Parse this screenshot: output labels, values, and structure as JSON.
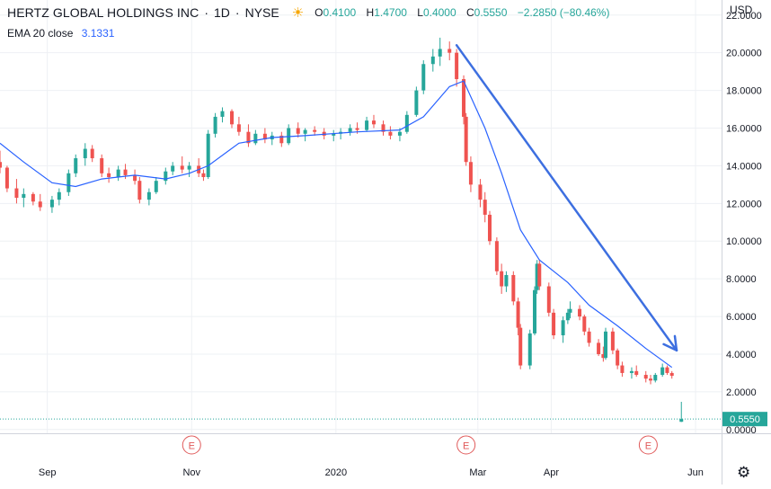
{
  "header": {
    "symbol": "HERTZ GLOBAL HOLDINGS INC",
    "interval": "1D",
    "exchange": "NYSE",
    "ohlc": {
      "o_label": "O",
      "o": "0.4100",
      "h_label": "H",
      "h": "1.4700",
      "l_label": "L",
      "l": "0.4000",
      "c_label": "C",
      "c": "0.5550",
      "change": "−2.2850 (−80.46%)"
    },
    "indicator": {
      "label": "EMA 20 close",
      "value": "3.1331"
    },
    "currency": "USD"
  },
  "colors": {
    "up": "#26a69a",
    "down": "#ef5350",
    "ema": "#2962ff",
    "arrow": "#3d6fe0",
    "grid": "#eef0f4",
    "last": "#26a69a",
    "earnings": "#e05a5a"
  },
  "icons": {
    "sun": "sun-icon",
    "gear": "gear-icon"
  },
  "chart_data": {
    "type": "candlestick",
    "title": "HERTZ GLOBAL HOLDINGS INC · 1D · NYSE",
    "ylabel": "USD",
    "ylim": [
      -0.2,
      22.8
    ],
    "y_ticks": [
      "22.0000",
      "20.0000",
      "18.0000",
      "16.0000",
      "14.0000",
      "12.0000",
      "10.0000",
      "8.0000",
      "6.0000",
      "4.0000",
      "2.0000",
      "0.0000"
    ],
    "x_ticks": [
      {
        "date": "2019-09-01",
        "label": "Sep"
      },
      {
        "date": "2019-11-01",
        "label": "Nov"
      },
      {
        "date": "2020-01-01",
        "label": "2020"
      },
      {
        "date": "2020-03-01",
        "label": "Mar"
      },
      {
        "date": "2020-04-01",
        "label": "Apr"
      },
      {
        "date": "2020-06-01",
        "label": "Jun"
      }
    ],
    "x_range": [
      "2019-08-12",
      "2020-06-12"
    ],
    "earnings_markers": [
      {
        "date": "2019-11-01",
        "label": "E"
      },
      {
        "date": "2020-02-25",
        "label": "E"
      },
      {
        "date": "2020-05-12",
        "label": "E"
      }
    ],
    "last_price": {
      "value": 0.555,
      "label": "0.5550"
    },
    "candles": [
      [
        "2019-08-12",
        14.2,
        14.8,
        13.6,
        13.9
      ],
      [
        "2019-08-15",
        13.9,
        14.0,
        12.6,
        12.8
      ],
      [
        "2019-08-19",
        12.8,
        13.3,
        12.0,
        12.3
      ],
      [
        "2019-08-22",
        12.3,
        12.8,
        11.8,
        12.5
      ],
      [
        "2019-08-26",
        12.5,
        12.6,
        11.9,
        12.1
      ],
      [
        "2019-08-29",
        12.1,
        12.5,
        11.6,
        11.8
      ],
      [
        "2019-09-03",
        11.8,
        12.4,
        11.5,
        12.2
      ],
      [
        "2019-09-06",
        12.2,
        12.8,
        11.9,
        12.6
      ],
      [
        "2019-09-10",
        12.6,
        13.8,
        12.4,
        13.6
      ],
      [
        "2019-09-13",
        13.6,
        14.6,
        13.4,
        14.4
      ],
      [
        "2019-09-17",
        14.4,
        15.2,
        14.0,
        14.9
      ],
      [
        "2019-09-20",
        14.9,
        15.1,
        14.2,
        14.4
      ],
      [
        "2019-09-24",
        14.4,
        14.6,
        13.4,
        13.6
      ],
      [
        "2019-09-27",
        13.6,
        13.9,
        13.1,
        13.4
      ],
      [
        "2019-10-01",
        13.4,
        14.0,
        13.2,
        13.8
      ],
      [
        "2019-10-04",
        13.8,
        14.1,
        13.3,
        13.5
      ],
      [
        "2019-10-08",
        13.5,
        13.8,
        13.0,
        13.2
      ],
      [
        "2019-10-10",
        13.2,
        13.4,
        12.0,
        12.2
      ],
      [
        "2019-10-14",
        12.2,
        12.8,
        11.9,
        12.6
      ],
      [
        "2019-10-17",
        12.6,
        13.4,
        12.5,
        13.2
      ],
      [
        "2019-10-21",
        13.2,
        13.9,
        13.0,
        13.7
      ],
      [
        "2019-10-24",
        13.7,
        14.2,
        13.5,
        14.0
      ],
      [
        "2019-10-28",
        14.0,
        14.5,
        13.6,
        13.8
      ],
      [
        "2019-10-31",
        13.8,
        14.2,
        13.4,
        14.0
      ],
      [
        "2019-11-04",
        14.0,
        14.4,
        13.4,
        13.6
      ],
      [
        "2019-11-06",
        13.6,
        13.8,
        13.2,
        13.4
      ],
      [
        "2019-11-08",
        13.4,
        15.9,
        13.3,
        15.7
      ],
      [
        "2019-11-11",
        15.7,
        16.8,
        15.5,
        16.6
      ],
      [
        "2019-11-14",
        16.6,
        17.1,
        16.3,
        16.9
      ],
      [
        "2019-11-18",
        16.9,
        17.0,
        16.0,
        16.2
      ],
      [
        "2019-11-21",
        16.2,
        16.6,
        15.6,
        15.8
      ],
      [
        "2019-11-25",
        15.8,
        16.2,
        15.0,
        15.2
      ],
      [
        "2019-11-28",
        15.2,
        15.9,
        15.1,
        15.7
      ],
      [
        "2019-12-02",
        15.7,
        16.0,
        15.2,
        15.4
      ],
      [
        "2019-12-05",
        15.4,
        15.8,
        15.1,
        15.6
      ],
      [
        "2019-12-09",
        15.6,
        15.8,
        15.0,
        15.2
      ],
      [
        "2019-12-12",
        15.2,
        16.2,
        15.1,
        16.0
      ],
      [
        "2019-12-16",
        16.0,
        16.3,
        15.5,
        15.7
      ],
      [
        "2019-12-19",
        15.7,
        16.0,
        15.3,
        15.9
      ],
      [
        "2019-12-23",
        15.9,
        16.1,
        15.6,
        15.8
      ],
      [
        "2019-12-27",
        15.8,
        16.0,
        15.4,
        15.6
      ],
      [
        "2019-12-31",
        15.6,
        15.9,
        15.3,
        15.7
      ],
      [
        "2020-01-03",
        15.7,
        16.0,
        15.4,
        15.8
      ],
      [
        "2020-01-07",
        15.8,
        16.2,
        15.6,
        16.0
      ],
      [
        "2020-01-10",
        16.0,
        16.3,
        15.7,
        15.9
      ],
      [
        "2020-01-14",
        15.9,
        16.6,
        15.8,
        16.4
      ],
      [
        "2020-01-17",
        16.4,
        16.7,
        16.0,
        16.2
      ],
      [
        "2020-01-21",
        16.2,
        16.4,
        15.6,
        15.8
      ],
      [
        "2020-01-24",
        15.8,
        16.1,
        15.4,
        15.6
      ],
      [
        "2020-01-28",
        15.6,
        16.0,
        15.3,
        15.8
      ],
      [
        "2020-01-31",
        15.8,
        16.9,
        15.7,
        16.7
      ],
      [
        "2020-02-04",
        16.7,
        18.2,
        16.6,
        18.0
      ],
      [
        "2020-02-07",
        18.0,
        19.6,
        17.8,
        19.4
      ],
      [
        "2020-02-11",
        19.4,
        20.2,
        19.0,
        19.8
      ],
      [
        "2020-02-14",
        19.8,
        20.8,
        19.3,
        20.2
      ],
      [
        "2020-02-18",
        20.2,
        20.6,
        19.6,
        20.0
      ],
      [
        "2020-02-21",
        20.0,
        20.2,
        18.2,
        18.6
      ],
      [
        "2020-02-24",
        18.6,
        18.8,
        16.2,
        16.6
      ],
      [
        "2020-02-25",
        16.6,
        16.8,
        14.0,
        14.2
      ],
      [
        "2020-02-27",
        14.2,
        14.5,
        12.6,
        13.0
      ],
      [
        "2020-03-02",
        13.0,
        13.3,
        11.8,
        12.2
      ],
      [
        "2020-03-04",
        12.2,
        12.6,
        11.0,
        11.4
      ],
      [
        "2020-03-06",
        11.4,
        11.6,
        9.8,
        10.0
      ],
      [
        "2020-03-09",
        10.0,
        10.2,
        8.2,
        8.4
      ],
      [
        "2020-03-11",
        8.4,
        8.8,
        7.2,
        7.6
      ],
      [
        "2020-03-13",
        7.6,
        8.4,
        7.3,
        8.2
      ],
      [
        "2020-03-16",
        8.2,
        8.4,
        6.6,
        6.8
      ],
      [
        "2020-03-18",
        6.8,
        7.0,
        5.0,
        5.4
      ],
      [
        "2020-03-19",
        5.4,
        5.6,
        3.2,
        3.4
      ],
      [
        "2020-03-23",
        3.4,
        5.3,
        3.2,
        5.1
      ],
      [
        "2020-03-25",
        5.1,
        7.6,
        5.0,
        7.4
      ],
      [
        "2020-03-26",
        7.4,
        9.0,
        7.2,
        8.8
      ],
      [
        "2020-03-27",
        8.8,
        9.0,
        7.4,
        7.6
      ],
      [
        "2020-03-31",
        7.6,
        7.8,
        6.0,
        6.2
      ],
      [
        "2020-04-02",
        6.2,
        6.4,
        4.8,
        5.0
      ],
      [
        "2020-04-06",
        5.0,
        6.0,
        4.6,
        5.8
      ],
      [
        "2020-04-08",
        5.8,
        6.4,
        5.6,
        6.2
      ],
      [
        "2020-04-09",
        6.2,
        6.8,
        5.9,
        6.4
      ],
      [
        "2020-04-13",
        6.4,
        6.6,
        5.8,
        6.0
      ],
      [
        "2020-04-15",
        6.0,
        6.1,
        5.0,
        5.2
      ],
      [
        "2020-04-17",
        5.2,
        5.4,
        4.4,
        4.6
      ],
      [
        "2020-04-21",
        4.6,
        4.8,
        3.9,
        4.0
      ],
      [
        "2020-04-23",
        4.0,
        4.4,
        3.6,
        3.8
      ],
      [
        "2020-04-24",
        3.8,
        5.4,
        3.7,
        5.2
      ],
      [
        "2020-04-27",
        5.2,
        5.4,
        4.0,
        4.2
      ],
      [
        "2020-04-29",
        4.2,
        4.3,
        3.2,
        3.4
      ],
      [
        "2020-05-01",
        3.4,
        3.6,
        2.8,
        3.0
      ],
      [
        "2020-05-05",
        3.0,
        3.3,
        2.7,
        3.1
      ],
      [
        "2020-05-07",
        3.1,
        3.4,
        2.8,
        2.9
      ],
      [
        "2020-05-11",
        2.9,
        3.1,
        2.5,
        2.7
      ],
      [
        "2020-05-13",
        2.7,
        2.9,
        2.4,
        2.6
      ],
      [
        "2020-05-15",
        2.6,
        3.0,
        2.5,
        2.9
      ],
      [
        "2020-05-18",
        2.9,
        3.5,
        2.8,
        3.3
      ],
      [
        "2020-05-20",
        3.3,
        3.4,
        2.9,
        3.0
      ],
      [
        "2020-05-22",
        3.0,
        3.1,
        2.7,
        2.85
      ],
      [
        "2020-05-26",
        0.41,
        1.47,
        0.4,
        0.555
      ]
    ],
    "ema": [
      [
        "2019-08-12",
        15.2
      ],
      [
        "2019-08-22",
        14.2
      ],
      [
        "2019-09-03",
        13.1
      ],
      [
        "2019-09-13",
        12.9
      ],
      [
        "2019-09-24",
        13.3
      ],
      [
        "2019-10-08",
        13.5
      ],
      [
        "2019-10-21",
        13.3
      ],
      [
        "2019-10-31",
        13.6
      ],
      [
        "2019-11-08",
        14.0
      ],
      [
        "2019-11-21",
        15.2
      ],
      [
        "2019-12-05",
        15.5
      ],
      [
        "2019-12-19",
        15.6
      ],
      [
        "2020-01-10",
        15.8
      ],
      [
        "2020-01-28",
        15.9
      ],
      [
        "2020-02-07",
        16.6
      ],
      [
        "2020-02-18",
        18.2
      ],
      [
        "2020-02-24",
        18.5
      ],
      [
        "2020-03-04",
        16.0
      ],
      [
        "2020-03-11",
        13.6
      ],
      [
        "2020-03-19",
        10.6
      ],
      [
        "2020-03-27",
        9.0
      ],
      [
        "2020-04-08",
        7.8
      ],
      [
        "2020-04-17",
        6.6
      ],
      [
        "2020-04-29",
        5.5
      ],
      [
        "2020-05-11",
        4.3
      ],
      [
        "2020-05-22",
        3.3
      ]
    ],
    "trend_arrow": {
      "from": [
        "2020-02-21",
        20.4
      ],
      "to": [
        "2020-05-24",
        4.2
      ]
    }
  }
}
